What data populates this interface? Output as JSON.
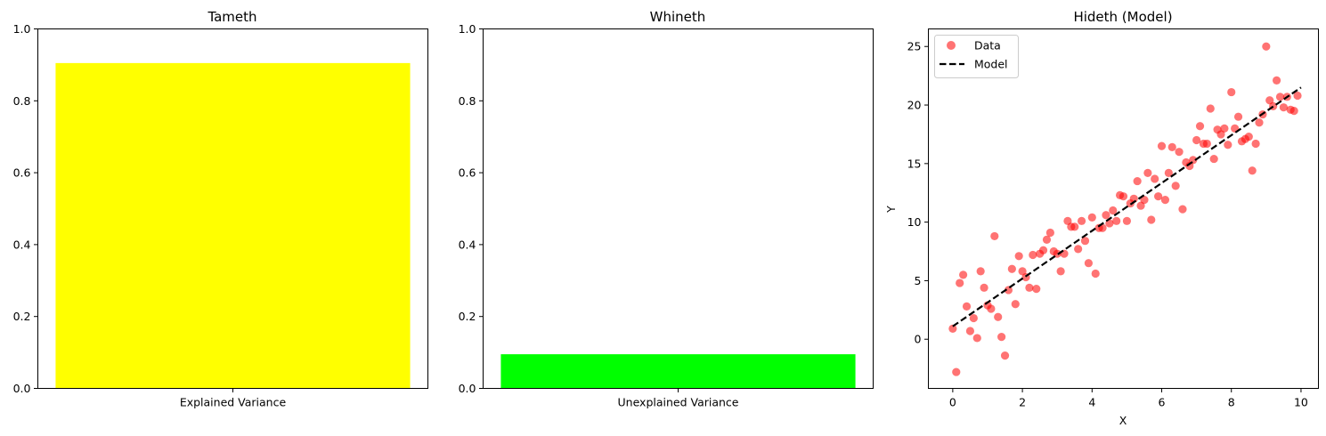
{
  "chart_data": [
    {
      "type": "bar",
      "title": "Tameth",
      "categories": [
        "Explained Variance"
      ],
      "values": [
        0.905
      ],
      "color": "#ffff00",
      "ylim": [
        0,
        1.0
      ],
      "yticks": [
        "0.0",
        "0.2",
        "0.4",
        "0.6",
        "0.8",
        "1.0"
      ],
      "xlabel": "",
      "ylabel": ""
    },
    {
      "type": "bar",
      "title": "Whineth",
      "categories": [
        "Unexplained Variance"
      ],
      "values": [
        0.095
      ],
      "color": "#00ff00",
      "ylim": [
        0,
        1.0
      ],
      "yticks": [
        "0.0",
        "0.2",
        "0.4",
        "0.6",
        "0.8",
        "1.0"
      ],
      "xlabel": "",
      "ylabel": ""
    },
    {
      "type": "scatter",
      "title": "Hideth (Model)",
      "xlabel": "X",
      "ylabel": "Y",
      "xlim": [
        -0.7,
        10.5
      ],
      "ylim": [
        -4.2,
        26.5
      ],
      "xticks": [
        "0",
        "2",
        "4",
        "6",
        "8",
        "10"
      ],
      "yticks": [
        "0",
        "5",
        "10",
        "15",
        "20",
        "25"
      ],
      "legend": {
        "position": "upper-left",
        "entries": [
          "Data",
          "Model"
        ]
      },
      "series": [
        {
          "name": "Data",
          "color": "#ff0000",
          "alpha": 0.55,
          "points": [
            [
              0.0,
              0.9
            ],
            [
              0.1,
              -2.8
            ],
            [
              0.2,
              4.8
            ],
            [
              0.3,
              5.5
            ],
            [
              0.4,
              2.8
            ],
            [
              0.5,
              0.7
            ],
            [
              0.6,
              1.8
            ],
            [
              0.7,
              0.1
            ],
            [
              0.8,
              5.8
            ],
            [
              0.9,
              4.4
            ],
            [
              1.0,
              2.9
            ],
            [
              1.1,
              2.6
            ],
            [
              1.2,
              8.8
            ],
            [
              1.3,
              1.9
            ],
            [
              1.4,
              0.2
            ],
            [
              1.5,
              -1.4
            ],
            [
              1.6,
              4.2
            ],
            [
              1.7,
              6.0
            ],
            [
              1.8,
              3.0
            ],
            [
              1.9,
              7.1
            ],
            [
              2.0,
              5.8
            ],
            [
              2.1,
              5.3
            ],
            [
              2.2,
              4.4
            ],
            [
              2.3,
              7.2
            ],
            [
              2.4,
              4.3
            ],
            [
              2.5,
              7.3
            ],
            [
              2.6,
              7.6
            ],
            [
              2.7,
              8.5
            ],
            [
              2.8,
              9.1
            ],
            [
              2.9,
              7.5
            ],
            [
              3.0,
              7.3
            ],
            [
              3.1,
              5.8
            ],
            [
              3.2,
              7.3
            ],
            [
              3.3,
              10.1
            ],
            [
              3.4,
              9.6
            ],
            [
              3.5,
              9.6
            ],
            [
              3.6,
              7.7
            ],
            [
              3.7,
              10.1
            ],
            [
              3.8,
              8.4
            ],
            [
              3.9,
              6.5
            ],
            [
              4.0,
              10.4
            ],
            [
              4.1,
              5.6
            ],
            [
              4.2,
              9.5
            ],
            [
              4.3,
              9.5
            ],
            [
              4.4,
              10.6
            ],
            [
              4.5,
              9.9
            ],
            [
              4.6,
              11.0
            ],
            [
              4.7,
              10.1
            ],
            [
              4.8,
              12.3
            ],
            [
              4.9,
              12.2
            ],
            [
              5.0,
              10.1
            ],
            [
              5.1,
              11.6
            ],
            [
              5.2,
              12.0
            ],
            [
              5.3,
              13.5
            ],
            [
              5.4,
              11.4
            ],
            [
              5.5,
              11.9
            ],
            [
              5.6,
              14.2
            ],
            [
              5.7,
              10.2
            ],
            [
              5.8,
              13.7
            ],
            [
              5.9,
              12.2
            ],
            [
              6.0,
              16.5
            ],
            [
              6.1,
              11.9
            ],
            [
              6.2,
              14.2
            ],
            [
              6.3,
              16.4
            ],
            [
              6.4,
              13.1
            ],
            [
              6.5,
              16.0
            ],
            [
              6.6,
              11.1
            ],
            [
              6.7,
              15.1
            ],
            [
              6.8,
              14.8
            ],
            [
              6.9,
              15.3
            ],
            [
              7.0,
              17.0
            ],
            [
              7.1,
              18.2
            ],
            [
              7.2,
              16.7
            ],
            [
              7.3,
              16.7
            ],
            [
              7.4,
              19.7
            ],
            [
              7.5,
              15.4
            ],
            [
              7.6,
              17.9
            ],
            [
              7.7,
              17.5
            ],
            [
              7.8,
              18.0
            ],
            [
              7.9,
              16.6
            ],
            [
              8.0,
              21.1
            ],
            [
              8.1,
              18.0
            ],
            [
              8.2,
              19.0
            ],
            [
              8.3,
              16.9
            ],
            [
              8.4,
              17.1
            ],
            [
              8.5,
              17.3
            ],
            [
              8.6,
              14.4
            ],
            [
              8.7,
              16.7
            ],
            [
              8.8,
              18.5
            ],
            [
              8.9,
              19.2
            ],
            [
              9.0,
              25.0
            ],
            [
              9.1,
              20.4
            ],
            [
              9.2,
              19.9
            ],
            [
              9.3,
              22.1
            ],
            [
              9.4,
              20.7
            ],
            [
              9.5,
              19.8
            ],
            [
              9.6,
              20.7
            ],
            [
              9.7,
              19.6
            ],
            [
              9.8,
              19.5
            ],
            [
              9.9,
              20.8
            ]
          ]
        },
        {
          "name": "Model",
          "type": "line",
          "style": "dashed",
          "color": "#000000",
          "x": [
            0,
            10
          ],
          "y": [
            1.1,
            21.5
          ]
        }
      ]
    }
  ]
}
